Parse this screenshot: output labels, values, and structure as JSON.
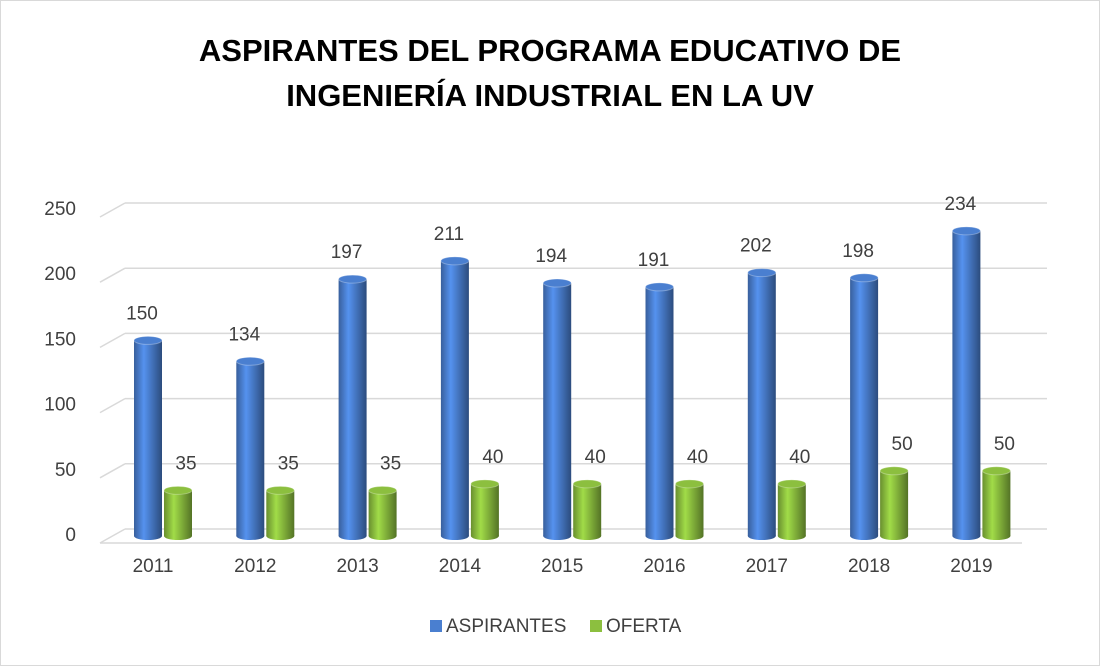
{
  "chart_data": {
    "type": "bar3d",
    "title": "ASPIRANTES DEL PROGRAMA EDUCATIVO DE INGENIERÍA INDUSTRIAL EN LA UV",
    "categories": [
      "2011",
      "2012",
      "2013",
      "2014",
      "2015",
      "2016",
      "2017",
      "2018",
      "2019"
    ],
    "series": [
      {
        "name": "ASPIRANTES",
        "color": "#4a7fd0",
        "values": [
          150,
          134,
          197,
          211,
          194,
          191,
          202,
          198,
          234
        ]
      },
      {
        "name": "OFERTA",
        "color": "#8cbf3f",
        "values": [
          35,
          35,
          35,
          40,
          40,
          40,
          40,
          50,
          50
        ]
      }
    ],
    "ylim": [
      0,
      250
    ],
    "yticks": [
      0,
      50,
      100,
      150,
      200,
      250
    ],
    "grid": true,
    "legend": "bottom"
  }
}
